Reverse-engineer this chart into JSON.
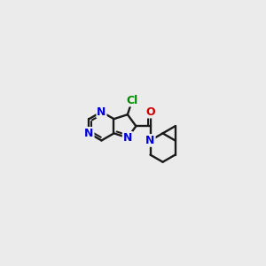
{
  "background_color": "#ebebeb",
  "bond_color": "#1a1a1a",
  "atom_colors": {
    "N": "#0000dd",
    "O": "#cc0000",
    "Cl": "#008800",
    "C": "#1a1a1a"
  },
  "bond_lw": 1.7,
  "font_size": 9.0,
  "scale": 0.07,
  "ox": 0.33,
  "oy": 0.54
}
